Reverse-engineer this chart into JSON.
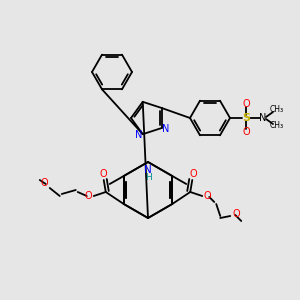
{
  "bg_color": "#e6e6e6",
  "figsize": [
    3.0,
    3.0
  ],
  "dpi": 100,
  "xlim": [
    0,
    300
  ],
  "ylim": [
    0,
    300
  ]
}
